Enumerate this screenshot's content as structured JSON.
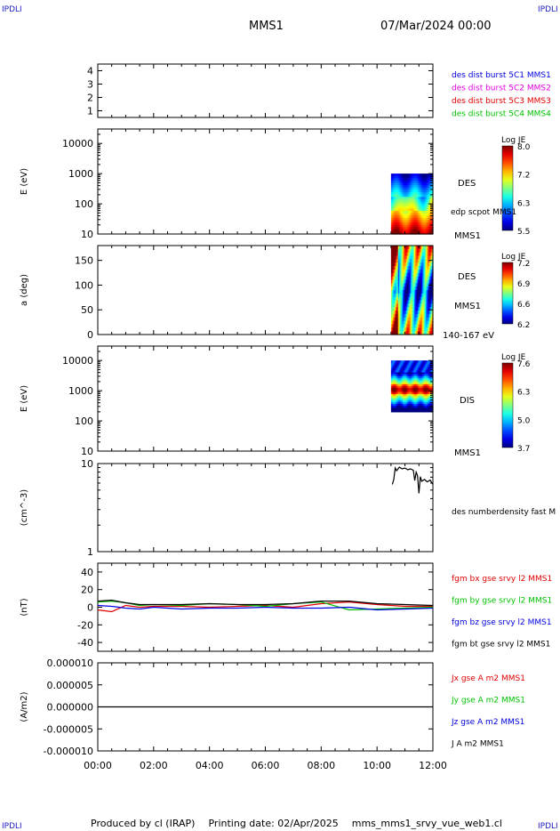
{
  "corner_label": "IPDLI",
  "header": {
    "mission": "MMS1",
    "datetime": "07/Mar/2024 00:00"
  },
  "footer": {
    "produced_by": "Produced by cl (IRAP)",
    "printing_date": "Printing date: 02/Apr/2025",
    "file": "mms_mms1_srvy_vue_web1.cl"
  },
  "colors": {
    "des_green": "#00c000",
    "black": "#000000",
    "red": "#e00000",
    "blue": "#0000e0",
    "magenta": "#e000e0",
    "corner": "#2020c0"
  },
  "x_axis": {
    "ticks": [
      "00:00",
      "02:00",
      "04:00",
      "06:00",
      "08:00",
      "10:00",
      "12:00"
    ],
    "range_hours": [
      0,
      12
    ]
  },
  "chart_data": [
    {
      "type": "line",
      "panel": "spacecraft",
      "ylabel": "",
      "ylim": [
        0.5,
        4.5
      ],
      "yticks": [
        "4",
        "3",
        "2",
        "1"
      ],
      "legend": [
        {
          "text": "des dist burst 5C1 MMS1",
          "color": "#0000e0"
        },
        {
          "text": "des dist burst 5C2 MMS2",
          "color": "#e000e0"
        },
        {
          "text": "des dist burst 5C3 MMS3",
          "color": "#e00000"
        },
        {
          "text": "des dist burst 5C4 MMS4",
          "color": "#00c000"
        }
      ],
      "series": []
    },
    {
      "type": "heatmap",
      "panel": "des_energy",
      "ylabel": "E (eV)",
      "yscale": "log",
      "ylim": [
        10,
        30000
      ],
      "yticks": [
        "10000",
        "1000",
        "100",
        "10"
      ],
      "x_extent_hours": [
        10.5,
        12.0
      ],
      "y_extent": [
        10,
        1000
      ],
      "side_labels": [
        "DES",
        "edp scpot MMS1",
        "MMS1"
      ],
      "colorbar": {
        "title": "Log JE",
        "ticks": [
          "8.0",
          "7.2",
          "6.3",
          "5.5"
        ]
      }
    },
    {
      "type": "heatmap",
      "panel": "des_pitch",
      "ylabel": "a (deg)",
      "ylim": [
        0,
        180
      ],
      "yticks": [
        "150",
        "100",
        "50",
        "0"
      ],
      "x_extent_hours": [
        10.5,
        12.0
      ],
      "y_extent": [
        0,
        180
      ],
      "side_labels": [
        "DES",
        "MMS1",
        "140-167 eV"
      ],
      "colorbar": {
        "title": "Log JE",
        "ticks": [
          "7.2",
          "6.9",
          "6.6",
          "6.2"
        ]
      }
    },
    {
      "type": "heatmap",
      "panel": "dis_energy",
      "ylabel": "E (eV)",
      "yscale": "log",
      "ylim": [
        10,
        30000
      ],
      "yticks": [
        "10000",
        "1000",
        "100",
        "10"
      ],
      "x_extent_hours": [
        10.5,
        12.0
      ],
      "y_extent": [
        200,
        10000
      ],
      "side_labels": [
        "DIS",
        "MMS1"
      ],
      "colorbar": {
        "title": "Log JE",
        "ticks": [
          "7.6",
          "6.3",
          "5.0",
          "3.7"
        ]
      }
    },
    {
      "type": "line",
      "panel": "density",
      "ylabel": "(cm^-3)",
      "yscale": "log",
      "ylim": [
        1,
        10
      ],
      "yticks": [
        "10",
        "1"
      ],
      "legend": [
        {
          "text": "des numberdensity fast M",
          "color": "#000000"
        }
      ],
      "series": [
        {
          "name": "des numberdensity fast M",
          "color": "#000000",
          "x": [
            10.55,
            10.6,
            10.65,
            10.7,
            10.8,
            10.9,
            11.0,
            11.1,
            11.2,
            11.3,
            11.35,
            11.4,
            11.45,
            11.5,
            11.55,
            11.6,
            11.7,
            11.8,
            11.9,
            12.0
          ],
          "y": [
            5.8,
            6.6,
            8.9,
            8.3,
            9.1,
            8.7,
            8.9,
            8.5,
            8.7,
            8.4,
            6.4,
            8.0,
            7.3,
            4.6,
            7.1,
            6.3,
            6.6,
            6.2,
            6.5,
            5.8
          ]
        }
      ]
    },
    {
      "type": "line",
      "panel": "magnetic_field",
      "ylabel": "(nT)",
      "ylim": [
        -50,
        50
      ],
      "yticks": [
        "40",
        "20",
        "0",
        "-20",
        "-40"
      ],
      "legend": [
        {
          "text": "fgm bx gse srvy l2 MMS1",
          "color": "#e00000"
        },
        {
          "text": "fgm by gse srvy l2 MMS1",
          "color": "#00c000"
        },
        {
          "text": "fgm bz gse srvy l2 MMS1",
          "color": "#0000e0"
        },
        {
          "text": "fgm bt gse srvy l2 MMS1",
          "color": "#000000"
        }
      ],
      "series": [
        {
          "name": "fgm bx gse srvy l2 MMS1",
          "color": "#e00000",
          "x": [
            0,
            0.5,
            1,
            1.5,
            2,
            3,
            4,
            5,
            6,
            7,
            8,
            9,
            10,
            11,
            12
          ],
          "y": [
            -3,
            -5,
            2,
            0,
            1,
            1,
            0,
            1,
            2,
            0,
            4,
            6,
            3,
            1,
            1
          ]
        },
        {
          "name": "fgm by gse srvy l2 MMS1",
          "color": "#00c000",
          "x": [
            0,
            0.5,
            1,
            1.5,
            2,
            3,
            4,
            5,
            6,
            7,
            8,
            9,
            10,
            11,
            12
          ],
          "y": [
            6,
            7,
            5,
            2,
            3,
            2,
            4,
            3,
            1,
            4,
            6,
            -3,
            -2,
            -1,
            0
          ]
        },
        {
          "name": "fgm bz gse srvy l2 MMS1",
          "color": "#0000e0",
          "x": [
            0,
            0.5,
            1,
            1.5,
            2,
            3,
            4,
            5,
            6,
            7,
            8,
            9,
            10,
            11,
            12
          ],
          "y": [
            2,
            1,
            -1,
            -2,
            0,
            -2,
            -1,
            -1,
            0,
            -1,
            -1,
            0,
            -3,
            -2,
            -1
          ]
        },
        {
          "name": "fgm bt gse srvy l2 MMS1",
          "color": "#000000",
          "x": [
            0,
            0.5,
            1,
            1.5,
            2,
            3,
            4,
            5,
            6,
            7,
            8,
            9,
            10,
            11,
            12
          ],
          "y": [
            7,
            8,
            5,
            3,
            3,
            3,
            4,
            3,
            3,
            4,
            7,
            7,
            4,
            3,
            2
          ]
        }
      ]
    },
    {
      "type": "line",
      "panel": "current_density",
      "ylabel": "(A/m2)",
      "ylim": [
        -1e-05,
        1e-05
      ],
      "yticks": [
        "0.000010",
        "0.000005",
        "0.000000",
        "-0.000005",
        "-0.000010"
      ],
      "legend": [
        {
          "text": "Jx gse A m2 MMS1",
          "color": "#e00000"
        },
        {
          "text": "Jy gse A m2 MMS1",
          "color": "#00c000"
        },
        {
          "text": "Jz gse A m2 MMS1",
          "color": "#0000e0"
        },
        {
          "text": "J A m2 MMS1",
          "color": "#000000"
        }
      ],
      "series": [
        {
          "name": "J A m2 MMS1",
          "color": "#000000",
          "x": [
            0,
            12
          ],
          "y": [
            0,
            0
          ]
        }
      ]
    }
  ]
}
